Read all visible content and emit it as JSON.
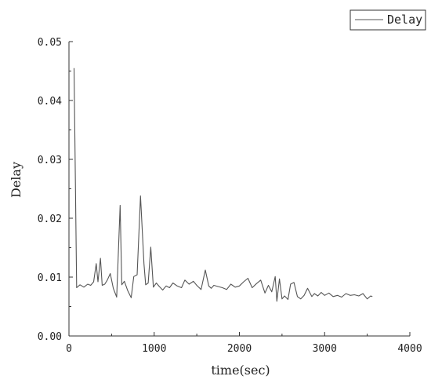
{
  "chart_data": {
    "type": "line",
    "title": "",
    "xlabel": "time(sec)",
    "ylabel": "Delay",
    "xlim": [
      0,
      4000
    ],
    "ylim": [
      0,
      0.05
    ],
    "xticks": [
      0,
      1000,
      2000,
      3000,
      4000
    ],
    "yticks": [
      "0.00",
      "0.01",
      "0.02",
      "0.03",
      "0.04",
      "0.05"
    ],
    "grid": false,
    "legend_position": "top-right",
    "series": [
      {
        "name": "Delay",
        "color": "#555555",
        "x": [
          60,
          90,
          130,
          175,
          220,
          255,
          290,
          320,
          340,
          370,
          390,
          420,
          450,
          485,
          520,
          560,
          600,
          620,
          650,
          690,
          730,
          760,
          800,
          840,
          880,
          900,
          930,
          960,
          990,
          1025,
          1060,
          1100,
          1140,
          1180,
          1220,
          1270,
          1320,
          1360,
          1410,
          1460,
          1500,
          1550,
          1600,
          1640,
          1670,
          1700,
          1750,
          1800,
          1850,
          1900,
          1950,
          2000,
          2050,
          2100,
          2150,
          2200,
          2250,
          2300,
          2340,
          2380,
          2420,
          2440,
          2470,
          2500,
          2530,
          2570,
          2600,
          2640,
          2680,
          2720,
          2760,
          2800,
          2850,
          2880,
          2920,
          2960,
          3000,
          3050,
          3100,
          3150,
          3200,
          3250,
          3300,
          3350,
          3400,
          3450,
          3500,
          3540,
          3560
        ],
        "y": [
          0.0455,
          0.0082,
          0.0087,
          0.0083,
          0.0088,
          0.0086,
          0.0092,
          0.0123,
          0.0092,
          0.0132,
          0.0086,
          0.0088,
          0.0095,
          0.0106,
          0.0081,
          0.0066,
          0.0222,
          0.0087,
          0.0093,
          0.0077,
          0.0065,
          0.0101,
          0.0104,
          0.0238,
          0.0123,
          0.0087,
          0.009,
          0.0151,
          0.0083,
          0.009,
          0.0084,
          0.0078,
          0.0085,
          0.0082,
          0.009,
          0.0085,
          0.0082,
          0.0095,
          0.0088,
          0.0093,
          0.0086,
          0.0079,
          0.0112,
          0.0085,
          0.0081,
          0.0086,
          0.0084,
          0.0082,
          0.0079,
          0.0088,
          0.0083,
          0.0085,
          0.0092,
          0.0098,
          0.0082,
          0.0089,
          0.0095,
          0.0073,
          0.0086,
          0.0075,
          0.0101,
          0.0059,
          0.0097,
          0.0063,
          0.0068,
          0.0062,
          0.0088,
          0.0091,
          0.0067,
          0.0063,
          0.0069,
          0.0081,
          0.0067,
          0.0072,
          0.0068,
          0.0074,
          0.0069,
          0.0073,
          0.0067,
          0.0069,
          0.0066,
          0.0072,
          0.0069,
          0.007,
          0.0068,
          0.0072,
          0.0063,
          0.0068,
          0.0067
        ]
      }
    ]
  }
}
